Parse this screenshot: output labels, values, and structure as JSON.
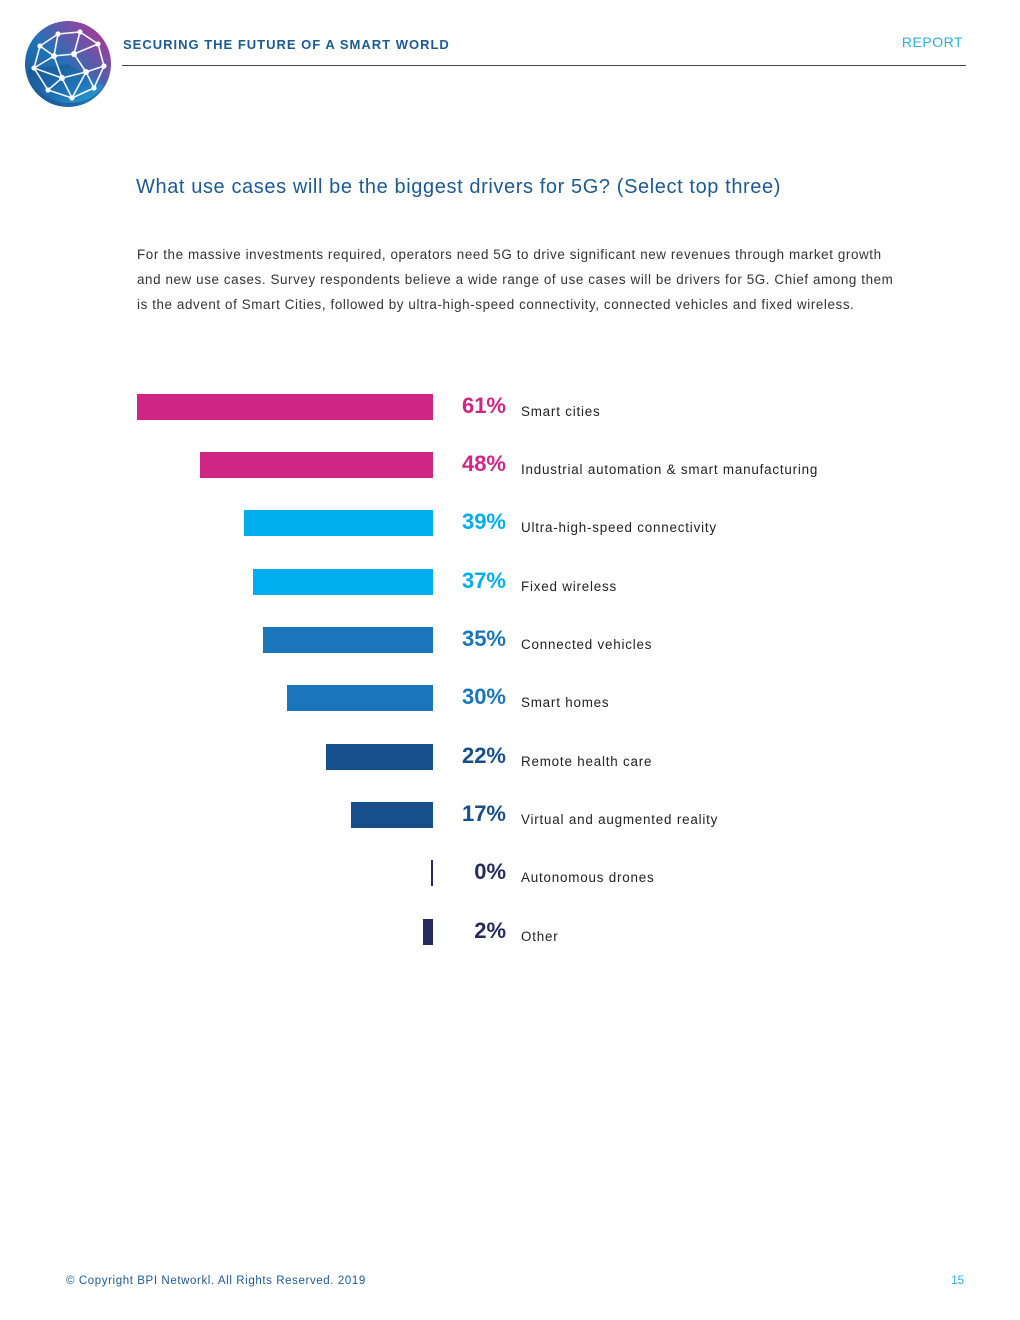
{
  "header": {
    "title": "SECURING THE FUTURE OF A SMART WORLD",
    "tag": "REPORT"
  },
  "intro_text": "For the massive investments required, operators need 5G to drive significant new revenues through market growth and new use cases. Survey respondents believe a wide range of use cases will be drivers for 5G. Chief among them is the advent of Smart Cities, followed by ultra-high-speed connectivity, connected vehicles and fixed wireless.",
  "chart_data": {
    "type": "bar",
    "orientation": "horizontal",
    "title": "What use cases will be the biggest drivers for 5G? (Select top three)",
    "categories": [
      "Smart cities",
      "Industrial automation & smart manufacturing",
      "Ultra-high-speed connectivity",
      "Fixed wireless",
      "Connected vehicles",
      "Smart homes",
      "Remote health care",
      "Virtual and augmented reality",
      "Autonomous drones",
      "Other"
    ],
    "values": [
      61,
      48,
      39,
      37,
      35,
      30,
      22,
      17,
      0,
      2
    ],
    "labels": [
      "61%",
      "48%",
      "39%",
      "37%",
      "35%",
      "30%",
      "22%",
      "17%",
      "0%",
      "2%"
    ],
    "colors": [
      "#cf2585",
      "#cf2585",
      "#00aeef",
      "#00aeef",
      "#1b75bb",
      "#1b75bb",
      "#174f8c",
      "#174f8c",
      "#272a5c",
      "#272a5c"
    ],
    "unit": "%",
    "xlim": [
      0,
      61
    ]
  },
  "footer": {
    "copyright": "© Copyright BPI Networkl. All Rights Reserved. 2019",
    "page_number": "15"
  }
}
